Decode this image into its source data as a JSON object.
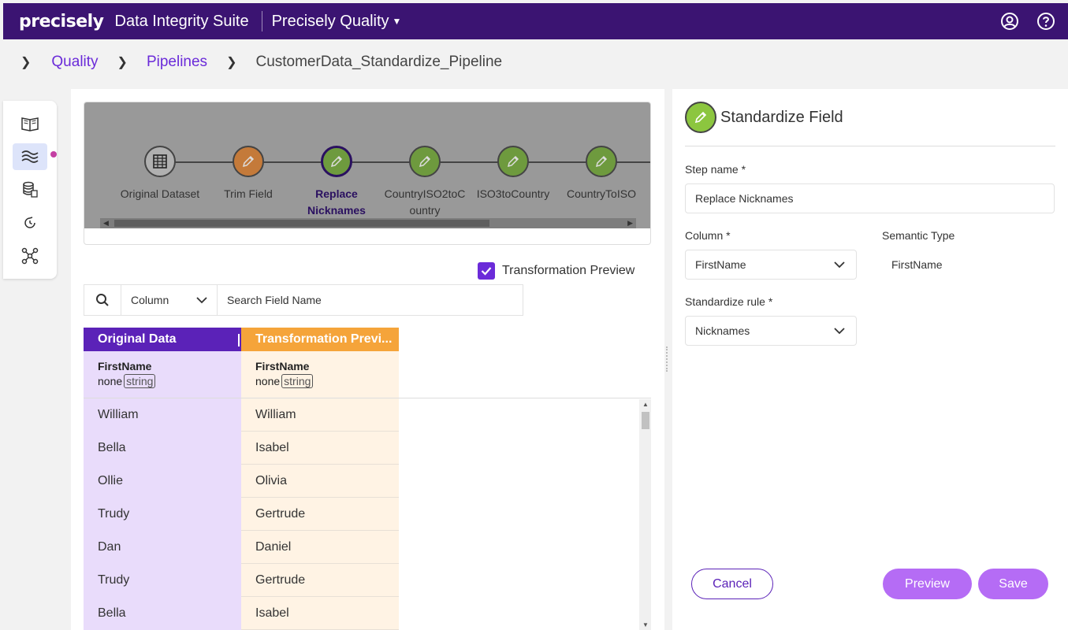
{
  "header": {
    "logo": "precisely",
    "suite": "Data Integrity Suite",
    "product": "Precisely Quality"
  },
  "breadcrumb": {
    "items": [
      "Quality",
      "Pipelines"
    ],
    "current": "CustomerData_Standardize_Pipeline"
  },
  "rail": {
    "icons": [
      "catalog-book-icon",
      "pipelines-waves-icon",
      "datasets-icon",
      "schedule-icon",
      "lineage-graph-icon"
    ]
  },
  "pipeline": {
    "steps": [
      {
        "label": "Original Dataset",
        "color": "#b0b0b0",
        "icon": "table-icon"
      },
      {
        "label": "Trim Field",
        "color": "#c47a3a",
        "icon": "pencil-icon"
      },
      {
        "label": "Replace Nicknames",
        "color": "#6e9a3e",
        "icon": "pencil-icon",
        "selected": true
      },
      {
        "label": "CountryISO2toCountry",
        "color": "#6e9a3e",
        "icon": "pencil-icon"
      },
      {
        "label": "ISO3toCountry",
        "color": "#6e9a3e",
        "icon": "pencil-icon"
      },
      {
        "label": "CountryToISO",
        "color": "#6e9a3e",
        "icon": "pencil-icon"
      }
    ],
    "step_label_lines": [
      [
        "Original Dataset"
      ],
      [
        "Trim Field"
      ],
      [
        "Replace",
        "Nicknames"
      ],
      [
        "CountryISO2toC",
        "ountry"
      ],
      [
        "ISO3toCountry"
      ],
      [
        "CountryToISO"
      ]
    ]
  },
  "preview": {
    "toggle_label": "Transformation Preview",
    "toggle_checked": true,
    "search_column": "Column",
    "search_placeholder": "Search Field Name"
  },
  "grid": {
    "original": {
      "header": "Original Data",
      "field": "FirstName",
      "semantic": "none",
      "type": "string",
      "rows": [
        "William",
        "Bella",
        "Ollie",
        "Trudy",
        "Dan",
        "Trudy",
        "Bella"
      ]
    },
    "transformed": {
      "header": "Transformation Previ...",
      "field": "FirstName",
      "semantic": "none",
      "type": "string",
      "rows": [
        "William",
        "Isabel",
        "Olivia",
        "Gertrude",
        "Daniel",
        "Gertrude",
        "Isabel"
      ]
    }
  },
  "panel": {
    "title": "Standardize Field",
    "step_name_label": "Step name *",
    "step_name_value": "Replace Nicknames",
    "column_label": "Column *",
    "column_value": "FirstName",
    "semantic_label": "Semantic Type",
    "semantic_value": "FirstName",
    "rule_label": "Standardize rule *",
    "rule_value": "Nicknames",
    "cancel": "Cancel",
    "preview": "Preview",
    "save": "Save"
  },
  "colors": {
    "topbar": "#3b1472",
    "accent": "#6b2bd9",
    "original_header": "#5b22b8",
    "preview_header": "#f5a43a",
    "button": "#b56cf5"
  }
}
